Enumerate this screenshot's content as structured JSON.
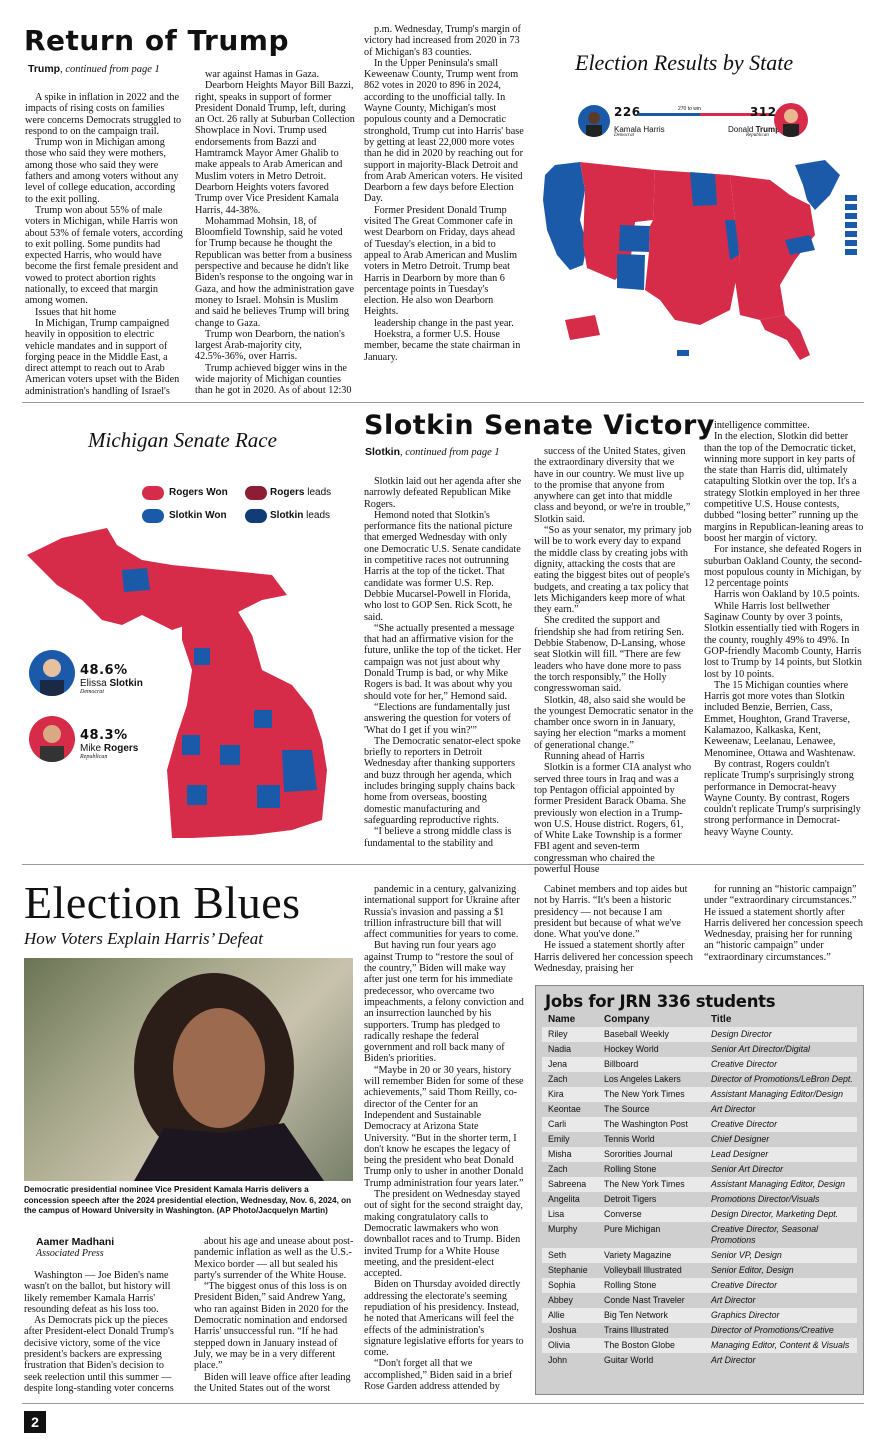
{
  "trump": {
    "headline": "Return of Trump",
    "byline_name": "Trump",
    "byline_rest": ", continued from page 1",
    "col1": [
      "A spike in inflation in 2022 and the impacts of rising costs on families were concerns Democrats struggled to respond to on the campaign trail.",
      "Trump won in Michigan among those who said they were mothers, among those who said they were fathers and among voters without any level of college education, according to the exit polling.",
      "Trump won about 55% of male voters in Michigan, while Harris won about 53% of female voters, according to exit polling. Some pundits had expected Harris, who would have become the first female president and vowed to protect abortion rights nationally, to exceed that margin among women.",
      "Issues that hit home",
      "In Michigan, Trump campaigned heavily in opposition to electric vehicle mandates and in support of forging peace in the Middle East, a direct attempt to reach out to Arab American voters upset with the Biden administration's handling of Israel's"
    ],
    "col2": [
      "war against Hamas in Gaza.",
      "Dearborn Heights Mayor Bill Bazzi, right, speaks in support of former President Donald Trump, left, during an Oct. 26 rally at Suburban Collection Showplace in Novi. Trump used endorsements from Bazzi and Hamtramck Mayor Amer Ghalib to make appeals to Arab American and Muslim voters in Metro Detroit. Dearborn Heights voters favored Trump over Vice President Kamala Harris, 44-38%.",
      "Mohammad Mohsin, 18, of Bloomfield Township, said he voted for Trump because he thought the Republican was better from a business perspective and because he didn't like Biden's response to the ongoing war in Gaza, and how the administration gave money to Israel. Mohsin is Muslim and said he believes Trump will bring change to Gaza.",
      "Trump won Dearborn, the nation's largest Arab-majority city, 42.5%-36%, over Harris.",
      "Trump achieved bigger wins in the wide majority of Michigan counties than he got in 2020. As of about 12:30"
    ],
    "col3": [
      "p.m. Wednesday, Trump's margin of victory had increased from 2020 in 73 of Michigan's 83 counties.",
      "In the Upper Peninsula's small Keweenaw County, Trump went from 862 votes in 2020 to 896 in 2024, according to the unofficial tally. In Wayne County, Michigan's most populous county and a Democratic stronghold, Trump cut into Harris' base by getting at least 22,000 more votes than he did in 2020 by reaching out for support in majority-Black Detroit and from Arab American voters. He visited Dearborn a few days before Election Day.",
      "Former President Donald Trump visited The Great Commoner cafe in west Dearborn on Friday, days ahead of Tuesday's election, in a bid to appeal to Arab American and Muslim voters in Metro Detroit. Trump beat Harris in Dearborn by more than 6 percentage points in Tuesday's election. He also won Dearborn Heights.",
      "leadership change in the past year.",
      "Hoekstra, a former U.S. House member, became the state chairman in January."
    ]
  },
  "electoral": {
    "title": "Election Results by State",
    "harris_votes": "226",
    "harris_name": "Kamala Harris",
    "harris_party": "Democrat",
    "threshold": "270 to win",
    "trump_votes": "312",
    "trump_first": "Donald",
    "trump_last": "Trump",
    "trump_party": "Republican",
    "colors": {
      "dem": "#1b5aa8",
      "rep": "#d72b4a"
    }
  },
  "senate_map": {
    "title": "Michigan Senate Race",
    "legend": {
      "rw": "Rogers Won",
      "rl_b": "Rogers",
      "rl": "leads",
      "sw": "Slotkin Won",
      "sl_b": "Slotkin",
      "sl": "leads"
    },
    "slotkin_pct": "48.6%",
    "slotkin_first": "Elissa",
    "slotkin_last": "Slotkin",
    "slotkin_party": "Democrat",
    "rogers_pct": "48.3%",
    "rogers_first": "Mike",
    "rogers_last": "Rogers",
    "rogers_party": "Republican",
    "colors": {
      "rogers_won": "#d72b4a",
      "rogers_leads": "#8c1d33",
      "slotkin_won": "#1b5aa8",
      "slotkin_leads": "#123c78"
    }
  },
  "slotkin": {
    "headline": "Slotkin Senate Victory",
    "byline_name": "Slotkin",
    "byline_rest": ", continued from page 1",
    "col1": [
      "Slotkin laid out her agenda after she narrowly defeated Republican Mike Rogers.",
      "Hemond noted that Slotkin's performance fits the national picture that emerged Wednesday with only one Democratic U.S. Senate candidate in competitive races not outrunning Harris at the top of the ticket. That candidate was former U.S. Rep. Debbie Mucarsel-Powell in Florida, who lost to GOP Sen. Rick Scott, he said.",
      "“She actually presented a message that had an affirmative vision for the future, unlike the top of the ticket. Her campaign was not just about why Donald Trump is bad, or why Mike Rogers is bad. It was about why you should vote for her,” Hemond said.",
      "“Elections are fundamentally just answering the question for voters of 'What do I get if you win?'”",
      "The Democratic senator-elect spoke briefly to reporters in Detroit Wednesday after thanking supporters and buzz through her agenda, which includes bringing supply chains back home from overseas, boosting domestic manufacturing and safeguarding reproductive rights.",
      "“I believe a strong middle class is fundamental to the stability and"
    ],
    "col2": [
      "success of the United States, given the extraordinary diversity that we have in our country. We must live up to the promise that anyone from anywhere can get into that middle class and beyond, or we're in trouble,” Slotkin said.",
      "“So as your senator, my primary job will be to work every day to expand the middle class by creating jobs with dignity, attacking the costs that are eating the biggest bites out of people's budgets, and creating a tax policy that lets Michiganders keep more of what they earn.”",
      "She credited the support and friendship she had from retiring Sen. Debbie Stabenow, D-Lansing, whose seat Slotkin will fill. “There are few leaders who have done more to pass the torch responsibly,” the Holly congresswoman said.",
      "Slotkin, 48, also said she would be the youngest Democratic senator in the chamber once sworn in in January, saying her election “marks a moment of generational change.”",
      "Running ahead of Harris",
      "Slotkin is a former CIA analyst who served three tours in Iraq and was a top Pentagon official appointed by former President Barack Obama. She previously won election in a Trump-won U.S. House district. Rogers, 61, of White Lake Township is a former FBI agent and seven-term congressman who chaired the powerful House"
    ],
    "col3": [
      "intelligence committee.",
      "In the election, Slotkin did better than the top of the Democratic ticket, winning more support in key parts of the state than Harris did, ultimately catapulting Slotkin over the top. It's a strategy Slotkin employed in her three competitive U.S. House contests, dubbed “losing better” running up the margins in Republican-leaning areas to boost her margin of victory.",
      "For instance, she defeated Rogers in suburban Oakland County, the second-most populous county in Michigan, by 12 percentage points",
      "Harris won Oakland by 10.5 points.",
      "While Harris lost bellwether Saginaw County by over 3 points, Slotkin essentially tied with Rogers in the county, roughly 49% to 49%. In GOP-friendly Macomb County, Harris lost to Trump by 14 points, but Slotkin lost by 10 points.",
      "The 15 Michigan counties where Harris got more votes than Slotkin included Benzie, Berrien, Cass, Emmet, Houghton, Grand Traverse, Kalamazoo, Kalkaska, Kent, Keweenaw, Leelanau, Lenawee, Menominee, Ottawa and Washtenaw.",
      "By contrast, Rogers couldn't replicate Trump's surprisingly strong performance in Democrat-heavy Wayne County. By contrast, Rogers couldn't replicate Trump's surprisingly strong performance in Democrat-heavy Wayne County."
    ]
  },
  "blues": {
    "headline": "Election Blues",
    "subhead": "How Voters Explain Harris’ Defeat",
    "caption": "Democratic presidential nominee Vice President Kamala Harris delivers a concession speech after the 2024 presidential election, Wednesday, Nov. 6, 2024, on the campus of Howard University in Washington. (AP Photo/Jacquelyn Martin)",
    "author": "Aamer Madhani",
    "agency": "Associated Press",
    "col1": [
      "Washington — Joe Biden's name wasn't on the ballot, but history will likely remember Kamala Harris' resounding defeat as his loss too.",
      "As Democrats pick up the pieces after President-elect Donald Trump's decisive victory, some of the vice president's backers are expressing frustration that Biden's decision to seek reelection until this summer — despite long-standing voter concerns"
    ],
    "col2": [
      "about his age and unease about post-pandemic inflation as well as the U.S.-Mexico border — all but sealed his party's surrender of the White House.",
      "“The biggest onus of this loss is on President Biden,” said Andrew Yang, who ran against Biden in 2020 for the Democratic nomination and endorsed Harris' unsuccessful run. “If he had stepped down in January instead of July, we may be in a very different place.”",
      "Biden will leave office after leading the United States out of the worst"
    ],
    "col3": [
      "pandemic in a century, galvanizing international support for Ukraine after Russia's invasion and passing a $1 trillion infrastructure bill that will affect communities for years to come.",
      "But having run four years ago against Trump to “restore the soul of the country,” Biden will make way after just one term for his immediate predecessor, who overcame two impeachments, a felony conviction and an insurrection launched by his supporters. Trump has pledged to radically reshape the federal government and roll back many of Biden's priorities.",
      "“Maybe in 20 or 30 years, history will remember Biden for some of these achievements,” said Thom Reilly, co-director of the Center for an Independent and Sustainable Democracy at Arizona State University. “But in the shorter term, I don't know he escapes the legacy of being the president who beat Donald Trump only to usher in another Donald Trump administration four years later.”",
      "The president on Wednesday stayed out of sight for the second straight day, making congratulatory calls to Democratic lawmakers who won downballot races and to Trump. Biden invited Trump for a White House meeting, and the president-elect accepted.",
      "Biden on Thursday avoided directly addressing the electorate's seeming repudiation of his presidency. Instead, he noted that Americans will feel the effects of the administration's signature legislative efforts for years to come.",
      "“Don't forget all that we accomplished,” Biden said in a brief Rose Garden address attended by"
    ],
    "col4": [
      "Cabinet members and top aides but not by Harris. “It's been a historic presidency — not because I am president but because of what we've done. What you've done.”",
      "He issued a statement shortly after Harris delivered her concession speech Wednesday, praising her"
    ],
    "col5": [
      "for running an “historic campaign” under “extraordinary circumstances.” He issued a statement shortly after Harris delivered her concession speech Wednesday, praising her for running an “historic campaign” under “extraordinary circumstances.”"
    ]
  },
  "jobs": {
    "title": "Jobs for JRN 336 students",
    "headers": [
      "Name",
      "Company",
      "Title"
    ],
    "rows": [
      [
        "Riley",
        "Baseball Weekly",
        "Design Director"
      ],
      [
        "Nadia",
        "Hockey World",
        "Senior Art Director/Digital"
      ],
      [
        "Jena",
        "Billboard",
        "Creative Director"
      ],
      [
        "Zach",
        "Los Angeles Lakers",
        "Director of Promotions/LeBron Dept."
      ],
      [
        "Kira",
        "The New York Times",
        "Assistant Managing Editor/Design"
      ],
      [
        "Keontae",
        "The Source",
        "Art Director"
      ],
      [
        "Carli",
        "The Washington Post",
        "Creative Director"
      ],
      [
        "Emily",
        "Tennis World",
        "Chief Designer"
      ],
      [
        "Misha",
        "Sororities Journal",
        "Lead Designer"
      ],
      [
        "Zach",
        "Rolling Stone",
        "Senior Art Director"
      ],
      [
        "Sabreena",
        "The New York Times",
        "Assistant Managing Editor, Design"
      ],
      [
        "Angelita",
        "Detroit Tigers",
        "Promotions Director/Visuals"
      ],
      [
        "Lisa",
        "Converse",
        "Design Director, Marketing Dept."
      ],
      [
        "Murphy",
        "Pure Michigan",
        "Creative Director, Seasonal Promotions"
      ],
      [
        "Seth",
        "Variety Magazine",
        "Senior VP, Design"
      ],
      [
        "Stephanie",
        "Volleyball Illustrated",
        "Senior Editor, Design"
      ],
      [
        "Sophia",
        "Rolling Stone",
        "Creative Director"
      ],
      [
        "Abbey",
        "Conde Nast Traveler",
        "Art Director"
      ],
      [
        "Allie",
        "Big Ten Network",
        "Graphics Director"
      ],
      [
        "Joshua",
        "Trains Illustrated",
        "Director of Promotions/Creative"
      ],
      [
        "Olivia",
        "The Boston Globe",
        "Managing Editor, Content & Visuals"
      ],
      [
        "John",
        "Guitar World",
        "Art Director"
      ]
    ]
  },
  "page_number": "2"
}
